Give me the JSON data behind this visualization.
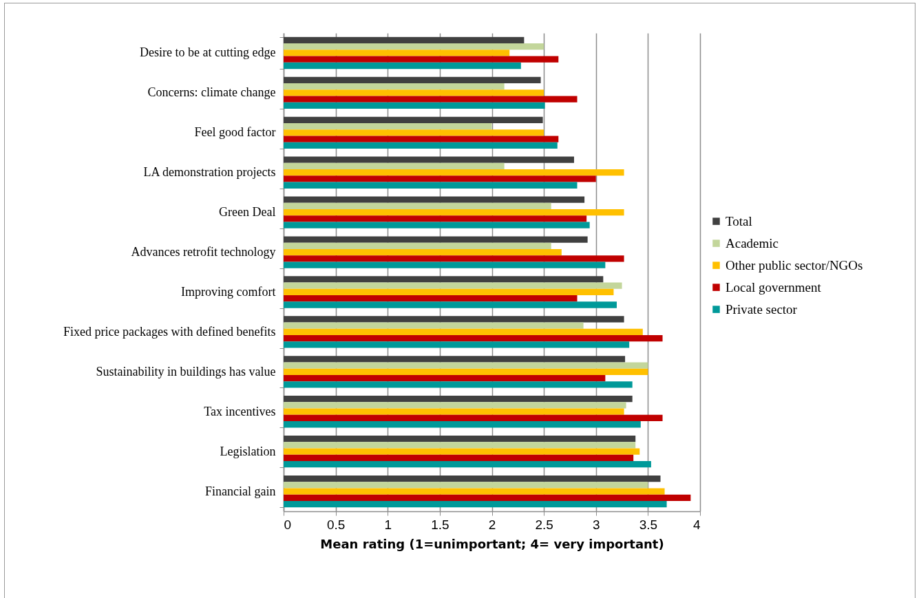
{
  "chart_data": {
    "type": "bar",
    "orientation": "horizontal",
    "xlabel": "Mean rating (1=unimportant; 4= very important)",
    "categories": [
      "Desire to be at cutting edge",
      "Concerns: climate change",
      "Feel good factor",
      "LA demonstration projects",
      "Green Deal",
      "Advances retrofit technology",
      "Improving comfort",
      "Fixed price packages with defined benefits",
      "Sustainability in buildings has value",
      "Tax incentives",
      "Legislation",
      "Financial gain"
    ],
    "series": [
      {
        "name": "Total",
        "color": "#404040",
        "values": [
          2.31,
          2.47,
          2.49,
          2.79,
          2.89,
          2.92,
          3.07,
          3.27,
          3.28,
          3.35,
          3.38,
          3.62
        ]
      },
      {
        "name": "Academic",
        "color": "#c3d69b",
        "values": [
          2.5,
          2.12,
          2.0,
          2.12,
          2.57,
          2.57,
          3.25,
          2.88,
          3.5,
          3.29,
          3.38,
          3.5
        ]
      },
      {
        "name": "Other public sector/NGOs",
        "color": "#ffc000",
        "values": [
          2.17,
          2.5,
          2.5,
          3.27,
          3.27,
          2.67,
          3.17,
          3.45,
          3.5,
          3.27,
          3.42,
          3.66
        ]
      },
      {
        "name": "Local government",
        "color": "#c00000",
        "values": [
          2.64,
          2.82,
          2.64,
          3.0,
          2.91,
          3.27,
          2.82,
          3.64,
          3.09,
          3.64,
          3.36,
          3.91
        ]
      },
      {
        "name": "Private sector",
        "color": "#009999",
        "values": [
          2.28,
          2.51,
          2.63,
          2.82,
          2.94,
          3.09,
          3.2,
          3.32,
          3.35,
          3.43,
          3.53,
          3.68
        ]
      }
    ],
    "xlim": [
      0,
      4
    ],
    "xticks": [
      0,
      0.5,
      1,
      1.5,
      2,
      2.5,
      3,
      3.5,
      4
    ],
    "grid": "x",
    "legend": "right"
  }
}
